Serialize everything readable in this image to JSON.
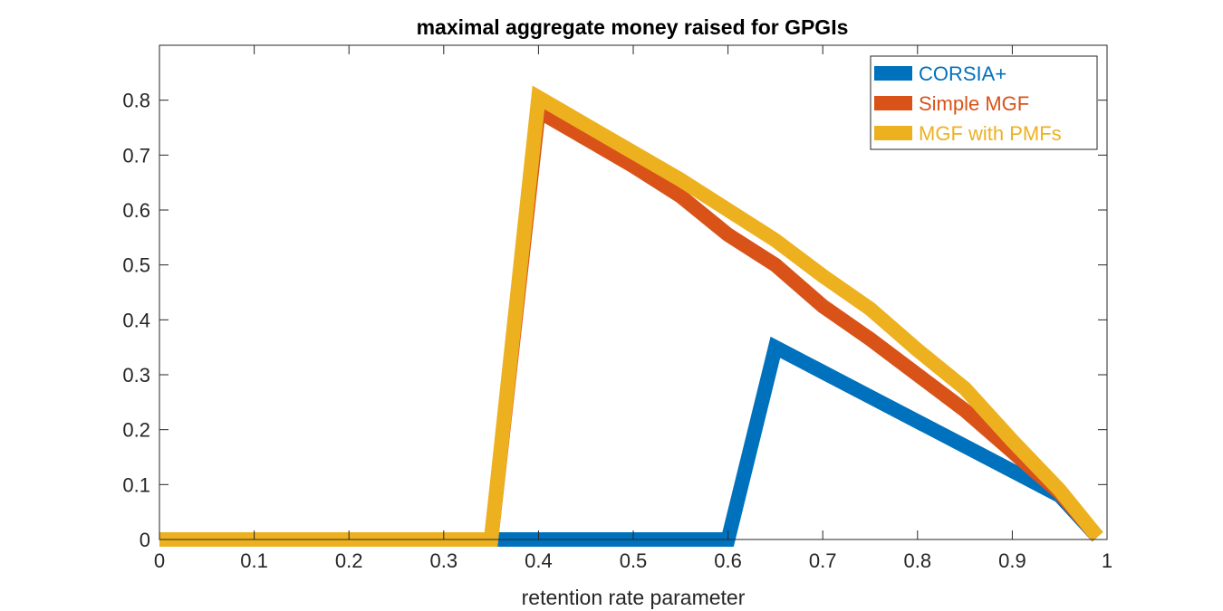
{
  "chart_data": {
    "type": "line",
    "title": "maximal aggregate money raised for GPGIs",
    "xlabel": "retention rate parameter",
    "ylabel": "",
    "xlim": [
      0,
      1
    ],
    "ylim": [
      0,
      0.9
    ],
    "xticks": [
      "0",
      "0.1",
      "0.2",
      "0.3",
      "0.4",
      "0.5",
      "0.6",
      "0.7",
      "0.8",
      "0.9",
      "1"
    ],
    "yticks": [
      "0",
      "0.1",
      "0.2",
      "0.3",
      "0.4",
      "0.5",
      "0.6",
      "0.7",
      "0.8"
    ],
    "grid": false,
    "box": true,
    "legend_position": "top-right",
    "series": [
      {
        "name": "CORSIA+",
        "color": "#0072BD",
        "x": [
          0,
          0.05,
          0.1,
          0.15,
          0.2,
          0.25,
          0.3,
          0.35,
          0.4,
          0.45,
          0.5,
          0.55,
          0.6,
          0.65,
          0.7,
          0.75,
          0.8,
          0.85,
          0.9,
          0.95,
          0.99
        ],
        "y": [
          0,
          0,
          0,
          0,
          0,
          0,
          0,
          0,
          0,
          0,
          0,
          0,
          0,
          0.35,
          0.305,
          0.26,
          0.215,
          0.17,
          0.125,
          0.08,
          0.005
        ]
      },
      {
        "name": "Simple MGF",
        "color": "#D95319",
        "x": [
          0,
          0.05,
          0.1,
          0.15,
          0.2,
          0.25,
          0.3,
          0.35,
          0.4,
          0.45,
          0.5,
          0.55,
          0.6,
          0.65,
          0.7,
          0.75,
          0.8,
          0.85,
          0.9,
          0.95,
          0.99
        ],
        "y": [
          0,
          0,
          0,
          0,
          0,
          0,
          0,
          0,
          0.78,
          0.73,
          0.68,
          0.625,
          0.555,
          0.5,
          0.425,
          0.365,
          0.3,
          0.235,
          0.16,
          0.085,
          0.005
        ]
      },
      {
        "name": "MGF with PMFs",
        "color": "#EDB120",
        "x": [
          0,
          0.05,
          0.1,
          0.15,
          0.2,
          0.25,
          0.3,
          0.35,
          0.4,
          0.45,
          0.5,
          0.55,
          0.6,
          0.65,
          0.7,
          0.75,
          0.8,
          0.85,
          0.9,
          0.95,
          0.99
        ],
        "y": [
          0,
          0,
          0,
          0,
          0,
          0,
          0,
          0,
          0.805,
          0.755,
          0.705,
          0.655,
          0.6,
          0.545,
          0.48,
          0.42,
          0.345,
          0.275,
          0.18,
          0.09,
          0.005
        ]
      }
    ]
  }
}
